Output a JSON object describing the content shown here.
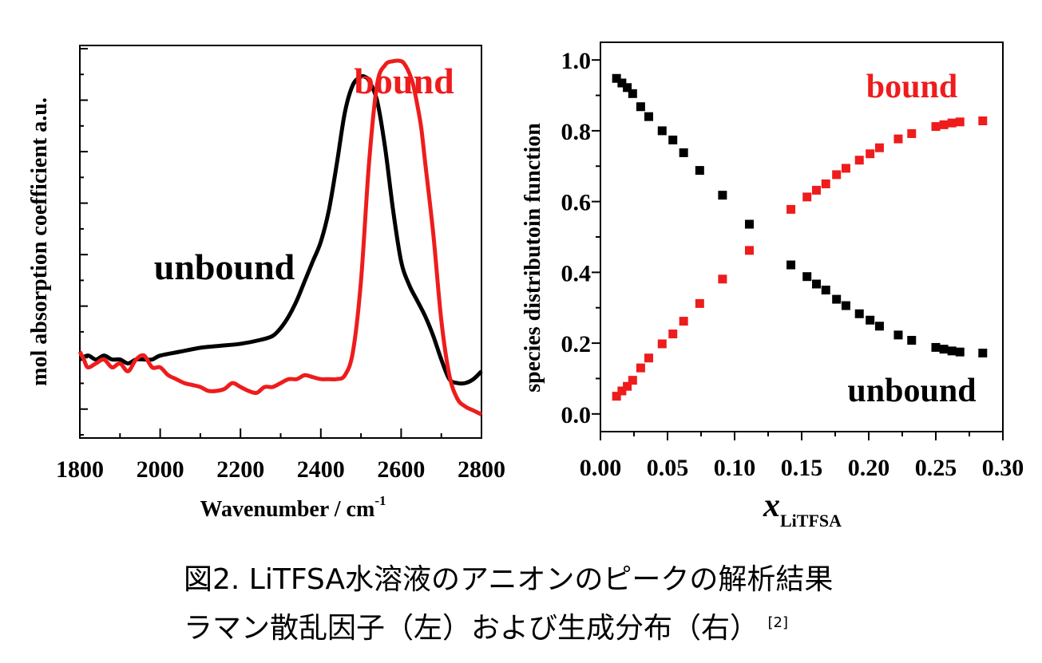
{
  "colors": {
    "unbound": "#000000",
    "bound": "#ee1c1c",
    "axis": "#000000"
  },
  "chart_data": [
    {
      "type": "line",
      "xlabel": "Wavenumber / cm",
      "xlabel_sup": "-1",
      "ylabel": "mol absorption coefficient a.u.",
      "xlim": [
        1800,
        2800
      ],
      "xticks": [
        "1800",
        "2000",
        "2200",
        "2400",
        "2600",
        "2800"
      ],
      "ylim": [
        0,
        1
      ],
      "yticks_labeled": false,
      "series": [
        {
          "name": "unbound",
          "color": "#000000",
          "x": [
            1800,
            1820,
            1840,
            1860,
            1880,
            1900,
            1920,
            1940,
            1960,
            1980,
            2000,
            2050,
            2100,
            2150,
            2200,
            2250,
            2280,
            2300,
            2320,
            2340,
            2360,
            2380,
            2400,
            2420,
            2440,
            2460,
            2480,
            2500,
            2510,
            2520,
            2540,
            2560,
            2580,
            2600,
            2620,
            2640,
            2660,
            2680,
            2700,
            2720,
            2740,
            2760,
            2780,
            2800
          ],
          "y": [
            0.2,
            0.21,
            0.2,
            0.21,
            0.2,
            0.2,
            0.19,
            0.2,
            0.2,
            0.2,
            0.21,
            0.22,
            0.23,
            0.235,
            0.24,
            0.25,
            0.26,
            0.28,
            0.31,
            0.35,
            0.4,
            0.45,
            0.5,
            0.58,
            0.7,
            0.83,
            0.9,
            0.92,
            0.92,
            0.91,
            0.86,
            0.74,
            0.58,
            0.45,
            0.39,
            0.35,
            0.31,
            0.26,
            0.2,
            0.15,
            0.14,
            0.14,
            0.15,
            0.17
          ]
        },
        {
          "name": "bound",
          "color": "#ee1c1c",
          "x": [
            1800,
            1810,
            1820,
            1840,
            1860,
            1880,
            1900,
            1920,
            1940,
            1960,
            1980,
            2000,
            2020,
            2040,
            2060,
            2080,
            2100,
            2120,
            2140,
            2160,
            2180,
            2200,
            2220,
            2240,
            2260,
            2280,
            2300,
            2320,
            2340,
            2360,
            2380,
            2400,
            2420,
            2440,
            2460,
            2480,
            2500,
            2520,
            2540,
            2560,
            2580,
            2600,
            2610,
            2620,
            2630,
            2640,
            2650,
            2660,
            2680,
            2700,
            2720,
            2740,
            2760,
            2780,
            2800
          ],
          "y": [
            0.22,
            0.2,
            0.18,
            0.19,
            0.2,
            0.18,
            0.19,
            0.17,
            0.2,
            0.21,
            0.18,
            0.18,
            0.16,
            0.15,
            0.14,
            0.135,
            0.13,
            0.12,
            0.12,
            0.125,
            0.14,
            0.13,
            0.12,
            0.115,
            0.13,
            0.13,
            0.14,
            0.15,
            0.15,
            0.16,
            0.155,
            0.15,
            0.15,
            0.15,
            0.16,
            0.22,
            0.4,
            0.7,
            0.9,
            0.95,
            0.96,
            0.96,
            0.95,
            0.93,
            0.9,
            0.85,
            0.79,
            0.7,
            0.52,
            0.3,
            0.16,
            0.1,
            0.08,
            0.07,
            0.06
          ]
        }
      ],
      "annotations": [
        {
          "text": "bound",
          "color": "#ee1c1c"
        },
        {
          "text": "unbound",
          "color": "#000000"
        }
      ]
    },
    {
      "type": "scatter",
      "xlabel": "x",
      "xlabel_sub": "LiTFSA",
      "ylabel": "species distributoin function",
      "xlim": [
        0.0,
        0.3
      ],
      "ylim": [
        -0.05,
        1.05
      ],
      "xticks": [
        "0.00",
        "0.05",
        "0.10",
        "0.15",
        "0.20",
        "0.25",
        "0.30"
      ],
      "yticks": [
        "0.0",
        "0.2",
        "0.4",
        "0.6",
        "0.8",
        "1.0"
      ],
      "series": [
        {
          "name": "unbound",
          "color": "#000000",
          "x": [
            0.012,
            0.016,
            0.02,
            0.024,
            0.03,
            0.036,
            0.046,
            0.054,
            0.062,
            0.074,
            0.091,
            0.111,
            0.142,
            0.154,
            0.161,
            0.168,
            0.176,
            0.183,
            0.193,
            0.201,
            0.208,
            0.222,
            0.232,
            0.25,
            0.256,
            0.262,
            0.268,
            0.285
          ],
          "y": [
            0.948,
            0.935,
            0.922,
            0.905,
            0.868,
            0.84,
            0.8,
            0.774,
            0.738,
            0.688,
            0.618,
            0.536,
            0.421,
            0.388,
            0.367,
            0.35,
            0.324,
            0.306,
            0.283,
            0.265,
            0.248,
            0.223,
            0.208,
            0.188,
            0.183,
            0.178,
            0.175,
            0.172
          ]
        },
        {
          "name": "bound",
          "color": "#ee1c1c",
          "x": [
            0.012,
            0.016,
            0.02,
            0.024,
            0.03,
            0.036,
            0.046,
            0.054,
            0.062,
            0.074,
            0.091,
            0.111,
            0.142,
            0.154,
            0.161,
            0.168,
            0.176,
            0.183,
            0.193,
            0.201,
            0.208,
            0.222,
            0.232,
            0.25,
            0.256,
            0.262,
            0.268,
            0.285
          ],
          "y": [
            0.05,
            0.065,
            0.078,
            0.095,
            0.13,
            0.158,
            0.198,
            0.226,
            0.262,
            0.312,
            0.381,
            0.462,
            0.578,
            0.613,
            0.632,
            0.65,
            0.676,
            0.694,
            0.717,
            0.735,
            0.752,
            0.777,
            0.792,
            0.812,
            0.817,
            0.822,
            0.825,
            0.828
          ]
        }
      ],
      "annotations": [
        {
          "text": "bound",
          "color": "#ee1c1c"
        },
        {
          "text": "unbound",
          "color": "#000000"
        }
      ]
    }
  ],
  "caption": {
    "line1": "図2. LiTFSA水溶液のアニオンのピークの解析結果",
    "line2": "ラマン散乱因子（左）および生成分布（右）",
    "ref": "[2]"
  }
}
